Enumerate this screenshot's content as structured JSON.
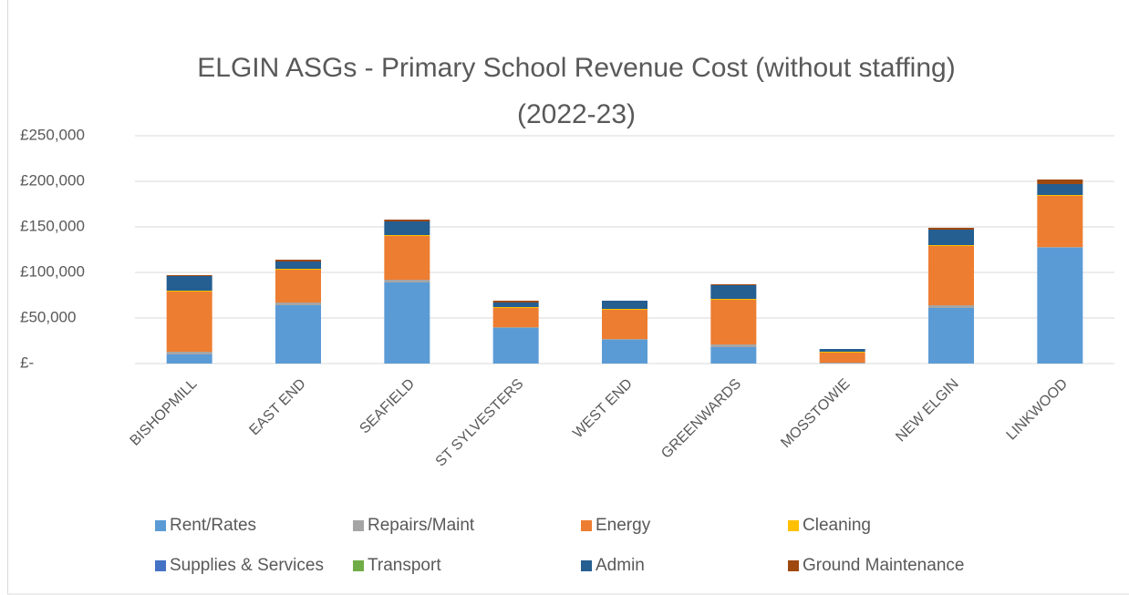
{
  "chart_data": {
    "type": "stacked_bar",
    "title": [
      "ELGIN ASGs - Primary School Revenue Cost (without staffing)",
      "(2022-23)"
    ],
    "categories": [
      "BISHOPMILL",
      "EAST END",
      "SEAFIELD",
      "ST SYLVESTERS",
      "WEST END",
      "GREENWARDS",
      "MOSSTOWIE",
      "NEW ELGIN",
      "LINKWOOD"
    ],
    "series": [
      {
        "name": "Rent/Rates",
        "color": "#5b9bd5",
        "values": [
          10000,
          64000,
          89000,
          39000,
          26000,
          18000,
          0,
          61000,
          127000
        ]
      },
      {
        "name": "Repairs/Maint",
        "color": "#a5a5a5",
        "values": [
          3000,
          3000,
          3000,
          1000,
          1000,
          3000,
          1000,
          3000,
          1000
        ]
      },
      {
        "name": "Energy",
        "color": "#ed7d31",
        "values": [
          66000,
          36000,
          48000,
          21000,
          32000,
          49000,
          11000,
          65000,
          56000
        ]
      },
      {
        "name": "Cleaning",
        "color": "#ffc000",
        "values": [
          1000,
          1000,
          1000,
          1000,
          1000,
          1000,
          1000,
          1000,
          1000
        ]
      },
      {
        "name": "Supplies & Services",
        "color": "#4472c4",
        "values": [
          0,
          0,
          0,
          0,
          0,
          0,
          0,
          0,
          0
        ]
      },
      {
        "name": "Transport",
        "color": "#70ad47",
        "values": [
          0,
          0,
          0,
          0,
          0,
          0,
          0,
          0,
          0
        ]
      },
      {
        "name": "Admin",
        "color": "#255e91",
        "values": [
          16000,
          8000,
          15000,
          5000,
          9000,
          15000,
          3000,
          17000,
          12000
        ]
      },
      {
        "name": "Ground Maintenance",
        "color": "#9e480e",
        "values": [
          1000,
          2000,
          2000,
          2000,
          0,
          1000,
          0,
          2000,
          5000
        ]
      }
    ],
    "ylim": [
      0,
      250000
    ],
    "yticks": [
      {
        "value": 0,
        "label": "£-"
      },
      {
        "value": 50000,
        "label": "£50,000"
      },
      {
        "value": 100000,
        "label": "£100,000"
      },
      {
        "value": 150000,
        "label": "£150,000"
      },
      {
        "value": 200000,
        "label": "£200,000"
      },
      {
        "value": 250000,
        "label": "£250,000"
      }
    ],
    "grid": true
  }
}
